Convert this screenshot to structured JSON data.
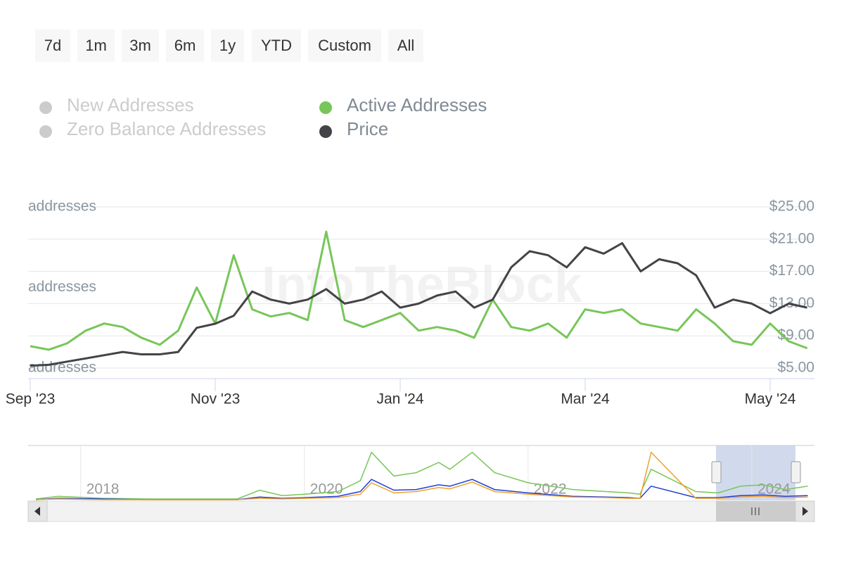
{
  "range_buttons": [
    "7d",
    "1m",
    "3m",
    "6m",
    "1y",
    "YTD",
    "Custom",
    "All"
  ],
  "watermark": "IntoTheBlock",
  "chart_data": [
    {
      "type": "line",
      "categories": [
        "Sep '23",
        null,
        null,
        null,
        null,
        null,
        null,
        null,
        null,
        null,
        "Nov '23",
        null,
        null,
        null,
        null,
        null,
        null,
        null,
        null,
        null,
        "Jan '24",
        null,
        null,
        null,
        null,
        null,
        null,
        null,
        null,
        null,
        "Mar '24",
        null,
        null,
        null,
        null,
        null,
        null,
        null,
        null,
        null,
        "May '24",
        null,
        null
      ],
      "series": [
        {
          "name": "Active Addresses",
          "color": "#77c659",
          "values": [
            272,
            228,
            307,
            465,
            553,
            509,
            377,
            289,
            465,
            1000,
            553,
            1400,
            728,
            640,
            684,
            596,
            1693,
            596,
            509,
            596,
            684,
            465,
            509,
            465,
            377,
            850,
            509,
            465,
            553,
            377,
            728,
            684,
            728,
            553,
            509,
            465,
            728,
            553,
            333,
            289,
            553,
            333,
            246
          ]
        },
        {
          "name": "Price",
          "color": "#434348",
          "axis": "y2",
          "values": [
            5.3,
            5.4,
            5.8,
            6.2,
            6.6,
            7.0,
            6.7,
            6.7,
            7.0,
            10.0,
            10.5,
            11.5,
            14.5,
            13.5,
            13.0,
            13.5,
            14.8,
            13.0,
            13.5,
            14.5,
            12.5,
            13.0,
            14.0,
            14.5,
            12.5,
            13.5,
            17.5,
            19.5,
            19.0,
            17.5,
            20.0,
            19.2,
            20.5,
            17.0,
            18.5,
            18.0,
            16.5,
            12.5,
            13.5,
            13.0,
            11.8,
            13.0,
            12.5
          ]
        }
      ],
      "ylim": [
        0,
        2000
      ],
      "yticks": [
        {
          "value": 0,
          "label": "addresses"
        },
        {
          "value": 1000,
          "label": "addresses"
        },
        {
          "value": 2000,
          "label": "addresses"
        }
      ],
      "y2lim": [
        5,
        25
      ],
      "y2ticks": [
        {
          "value": 5,
          "label": "$5.00"
        },
        {
          "value": 9,
          "label": "$9.00"
        },
        {
          "value": 13,
          "label": "$13.00"
        },
        {
          "value": 17,
          "label": "$17.00"
        },
        {
          "value": 21,
          "label": "$21.00"
        },
        {
          "value": 25,
          "label": "$25.00"
        }
      ],
      "grid": true
    },
    {
      "type": "line",
      "x": [
        2017.6,
        2017.8,
        2018.2,
        2018.6,
        2019.0,
        2019.4,
        2019.6,
        2019.8,
        2020.0,
        2020.3,
        2020.5,
        2020.6,
        2020.8,
        2021.0,
        2021.2,
        2021.3,
        2021.5,
        2021.7,
        2022.0,
        2022.4,
        2022.7,
        2022.9,
        2023.0,
        2023.1,
        2023.5,
        2023.7,
        2023.9,
        2024.1,
        2024.3,
        2024.5
      ],
      "series": [
        {
          "name": "Active Addresses",
          "color": "#77c659",
          "values": [
            1,
            5,
            2,
            1,
            1,
            1,
            14,
            6,
            8,
            12,
            28,
            70,
            35,
            40,
            55,
            45,
            70,
            40,
            25,
            15,
            12,
            10,
            8,
            45,
            12,
            10,
            20,
            22,
            15,
            20
          ]
        },
        {
          "name": "New Addresses",
          "color": "#1f3fd6",
          "values": [
            0,
            2,
            1,
            0,
            0,
            0,
            4,
            2,
            3,
            5,
            12,
            30,
            14,
            15,
            22,
            20,
            30,
            15,
            10,
            5,
            4,
            3,
            2,
            20,
            3,
            3,
            6,
            7,
            5,
            6
          ]
        },
        {
          "name": "Zero Balance Addresses",
          "color": "#f0a030",
          "values": [
            0,
            1,
            0,
            0,
            0,
            0,
            2,
            1,
            2,
            3,
            8,
            25,
            10,
            12,
            18,
            16,
            26,
            12,
            8,
            4,
            3,
            2,
            2,
            70,
            2,
            2,
            4,
            5,
            3,
            4
          ]
        }
      ],
      "xlim": [
        2017.53,
        2024.56
      ],
      "xticks": [
        2018,
        2020,
        2022,
        2024
      ],
      "ylim": [
        0,
        77
      ],
      "grid": true
    }
  ]
}
